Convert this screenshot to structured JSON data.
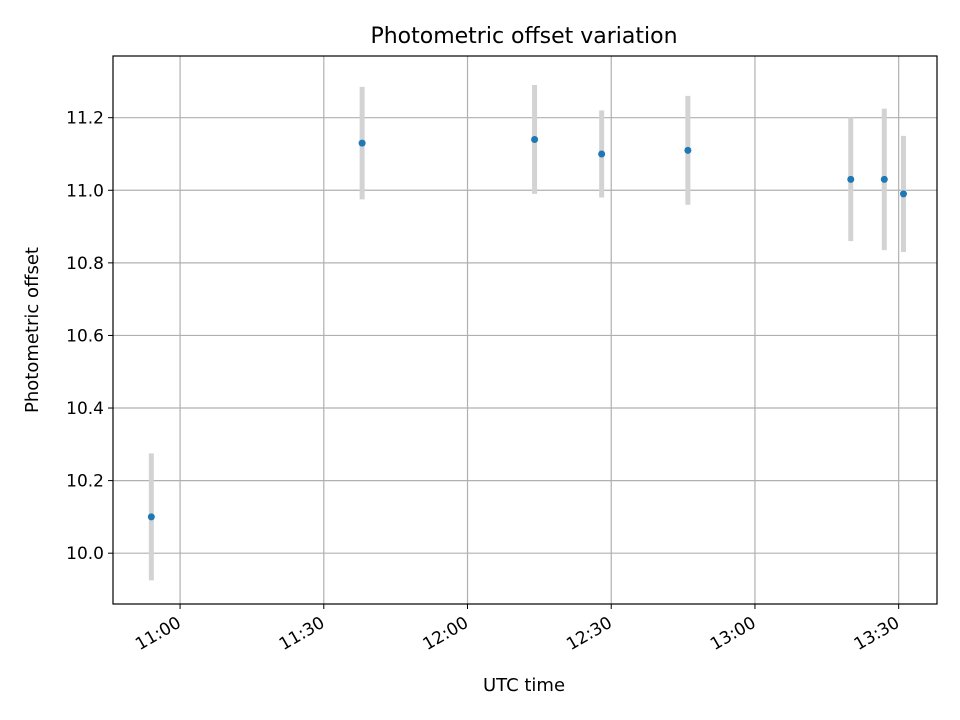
{
  "chart_data": {
    "type": "scatter",
    "title": "Photometric offset variation",
    "xlabel": "UTC time",
    "ylabel": "Photometric offset",
    "grid": true,
    "xlim": [
      "10:46",
      "13:38"
    ],
    "ylim": [
      9.86,
      11.37
    ],
    "x_ticks": [
      "11:00",
      "11:30",
      "12:00",
      "12:30",
      "13:00",
      "13:30"
    ],
    "y_ticks": [
      10.0,
      10.2,
      10.4,
      10.6,
      10.8,
      11.0,
      11.2
    ],
    "y_tick_labels": [
      "10.0",
      "10.2",
      "10.4",
      "10.6",
      "10.8",
      "11.0",
      "11.2"
    ],
    "series": [
      {
        "x": [
          "10:54",
          "11:38",
          "12:14",
          "12:28",
          "12:46",
          "13:20",
          "13:27",
          "13:31"
        ],
        "y": [
          10.1,
          11.13,
          11.14,
          11.1,
          11.11,
          11.03,
          11.03,
          10.99
        ],
        "yerr": [
          0.175,
          0.155,
          0.15,
          0.12,
          0.15,
          0.17,
          0.195,
          0.16
        ],
        "marker_color": "#1f77b4",
        "error_color": "#d3d3d3"
      }
    ]
  }
}
